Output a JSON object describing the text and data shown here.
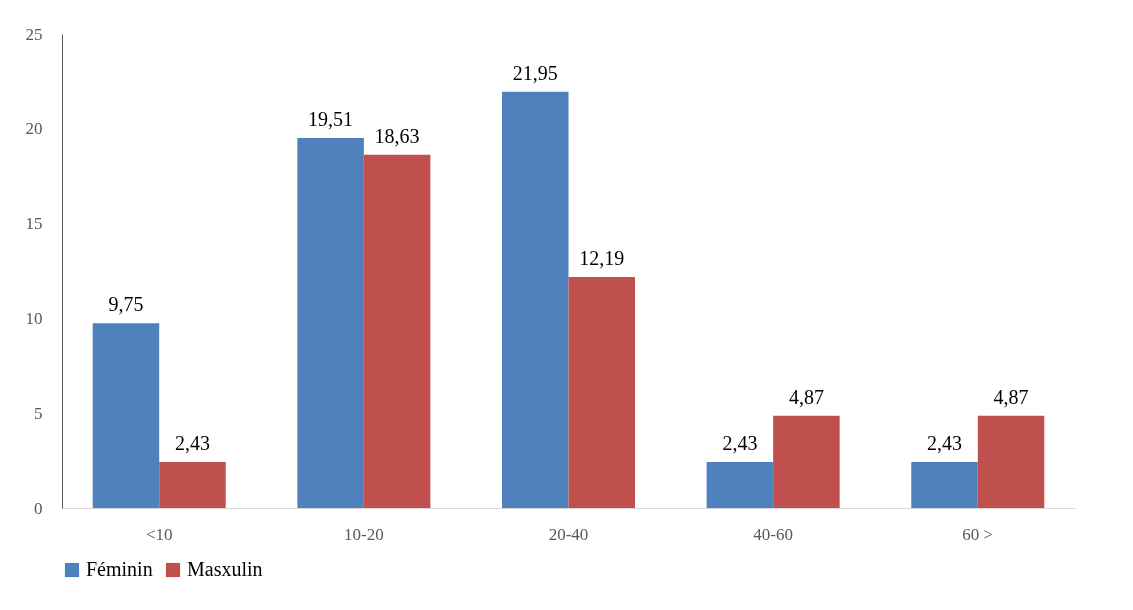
{
  "chart_data": {
    "type": "bar",
    "categories": [
      "<10",
      "10-20",
      "20-40",
      "40-60",
      "60 >"
    ],
    "series": [
      {
        "name": "Féminin",
        "color": "#4f81bd",
        "values": [
          9.75,
          19.51,
          21.95,
          2.43,
          2.43
        ],
        "value_labels": [
          "9,75",
          "19,51",
          "21,95",
          "2,43",
          "2,43"
        ]
      },
      {
        "name": "Masxulin",
        "color": "#c0504d",
        "values": [
          2.43,
          18.63,
          12.19,
          4.87,
          4.87
        ],
        "value_labels": [
          "2,43",
          "18,63",
          "12,19",
          "4,87",
          "4,87"
        ]
      }
    ],
    "ylim": [
      0,
      25
    ],
    "yticks": [
      0,
      5,
      10,
      15,
      20,
      25
    ],
    "grid": false,
    "legend": "bottom"
  }
}
